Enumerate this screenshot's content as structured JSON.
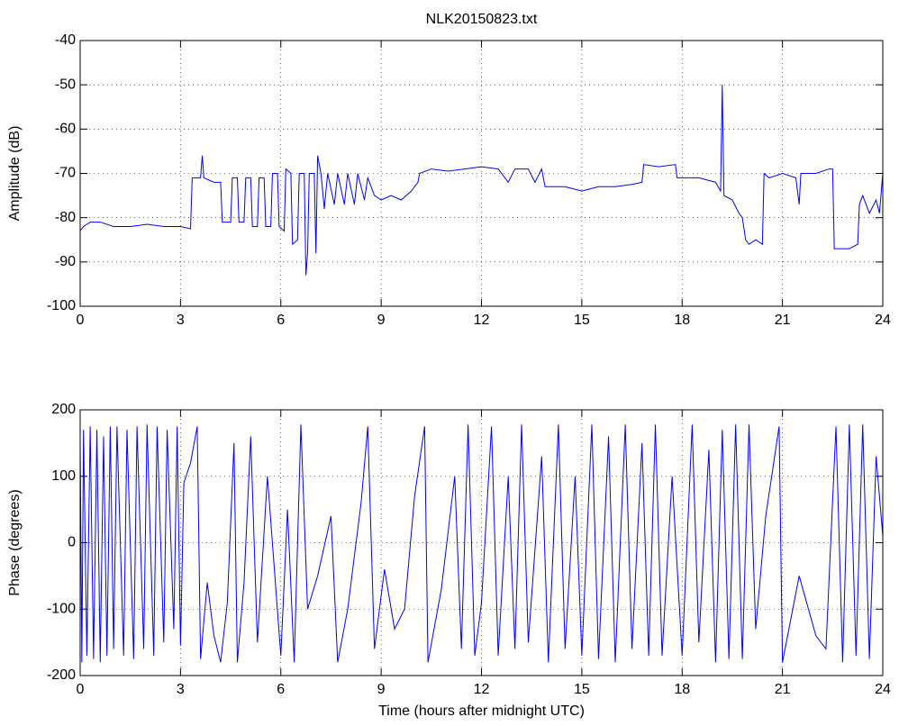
{
  "chart_data": [
    {
      "type": "line",
      "title": "NLK20150823.txt",
      "ylabel": "Amplitude (dB)",
      "grid": true,
      "xlim": [
        0,
        24
      ],
      "xticks": [
        0,
        3,
        6,
        9,
        12,
        15,
        18,
        21,
        24
      ],
      "ylim": [
        -100,
        -40
      ],
      "yticks": [
        -100,
        -90,
        -80,
        -70,
        -60,
        -50,
        -40
      ],
      "series": [
        {
          "color": "#0000ff",
          "x": [
            0,
            0.1,
            0.3,
            0.6,
            1,
            1.5,
            2,
            2.5,
            3,
            3.3,
            3.35,
            3.6,
            3.65,
            3.7,
            4,
            4.2,
            4.25,
            4.5,
            4.55,
            4.7,
            4.75,
            4.9,
            4.95,
            5.1,
            5.15,
            5.3,
            5.35,
            5.5,
            5.55,
            5.7,
            5.75,
            5.9,
            5.95,
            6.1,
            6.15,
            6.3,
            6.35,
            6.5,
            6.55,
            6.7,
            6.75,
            6.8,
            6.85,
            7,
            7.05,
            7.1,
            7.2,
            7.3,
            7.4,
            7.6,
            7.7,
            7.9,
            8,
            8.2,
            8.3,
            8.5,
            8.6,
            8.8,
            9,
            9.3,
            9.6,
            9.9,
            10.1,
            10.15,
            10.5,
            11,
            11.5,
            12,
            12.5,
            12.8,
            13,
            13.4,
            13.6,
            13.8,
            13.9,
            14.5,
            15,
            15.5,
            16,
            16.5,
            16.8,
            16.85,
            17.3,
            17.8,
            17.85,
            18.5,
            19,
            19.15,
            19.2,
            19.25,
            19.5,
            19.7,
            19.8,
            19.9,
            20,
            20.2,
            20.4,
            20.45,
            20.6,
            21,
            21.4,
            21.5,
            21.55,
            22,
            22.4,
            22.5,
            22.55,
            23,
            23.25,
            23.3,
            23.4,
            23.6,
            23.8,
            23.9,
            24
          ],
          "values": [
            -83,
            -82,
            -81,
            -81,
            -82,
            -82,
            -81.5,
            -82,
            -82,
            -82.5,
            -71,
            -71,
            -66,
            -71,
            -72,
            -72,
            -81,
            -81,
            -71,
            -71,
            -81,
            -81,
            -71,
            -71,
            -82,
            -82,
            -71,
            -71,
            -82,
            -82,
            -70,
            -70,
            -82,
            -83,
            -69,
            -70,
            -86,
            -85,
            -70,
            -70,
            -93,
            -88,
            -70,
            -70,
            -88,
            -66,
            -70,
            -78,
            -70,
            -77,
            -70,
            -77,
            -70,
            -77,
            -70,
            -76,
            -71,
            -75,
            -76,
            -75,
            -76,
            -74,
            -72,
            -70,
            -69,
            -69.5,
            -69,
            -68.5,
            -69,
            -72,
            -69,
            -69,
            -72,
            -69,
            -73,
            -73,
            -74,
            -73,
            -73,
            -72.5,
            -72,
            -68,
            -68.5,
            -68,
            -71,
            -71,
            -72,
            -74,
            -50,
            -75,
            -76,
            -79,
            -80,
            -85,
            -86,
            -85,
            -86,
            -70,
            -71,
            -70,
            -71,
            -77,
            -70,
            -70,
            -69,
            -69,
            -87,
            -87,
            -86,
            -77,
            -75,
            -79,
            -76,
            -79,
            -70
          ]
        }
      ]
    },
    {
      "type": "line",
      "ylabel": "Phase (degrees)",
      "xlabel": "Time (hours after midnight UTC)",
      "grid": true,
      "xlim": [
        0,
        24
      ],
      "xticks": [
        0,
        3,
        6,
        9,
        12,
        15,
        18,
        21,
        24
      ],
      "ylim": [
        -200,
        200
      ],
      "yticks": [
        -200,
        -100,
        0,
        100,
        200
      ],
      "series": [
        {
          "color": "#0000ff",
          "x": [
            0,
            0.05,
            0.1,
            0.2,
            0.3,
            0.4,
            0.5,
            0.6,
            0.7,
            0.8,
            0.9,
            1.0,
            1.1,
            1.3,
            1.4,
            1.6,
            1.7,
            1.9,
            2.0,
            2.2,
            2.3,
            2.5,
            2.6,
            2.8,
            2.9,
            3.0,
            3.1,
            3.3,
            3.5,
            3.6,
            3.8,
            4.0,
            4.2,
            4.4,
            4.6,
            4.7,
            4.9,
            5.1,
            5.3,
            5.6,
            6.0,
            6.2,
            6.4,
            6.6,
            6.8,
            7.1,
            7.5,
            7.7,
            8.0,
            8.4,
            8.6,
            8.8,
            9.1,
            9.4,
            9.7,
            10,
            10.3,
            10.4,
            10.8,
            11.2,
            11.4,
            11.6,
            11.8,
            12.0,
            12.3,
            12.5,
            12.8,
            13.0,
            13.2,
            13.4,
            13.8,
            14.0,
            14.3,
            14.5,
            14.8,
            15.0,
            15.3,
            15.5,
            15.8,
            16.0,
            16.3,
            16.5,
            16.8,
            17.0,
            17.2,
            17.4,
            17.7,
            18.0,
            18.3,
            18.5,
            18.8,
            19.0,
            19.2,
            19.4,
            19.6,
            19.8,
            20.0,
            20.2,
            20.5,
            20.9,
            21.0,
            21.5,
            22.0,
            22.3,
            22.6,
            22.8,
            23.0,
            23.2,
            23.4,
            23.6,
            23.8,
            24.0
          ],
          "values": [
            150,
            -180,
            170,
            -170,
            175,
            -175,
            170,
            -180,
            160,
            -170,
            175,
            -160,
            175,
            -170,
            170,
            -175,
            175,
            -160,
            178,
            -170,
            175,
            -150,
            170,
            -130,
            175,
            -155,
            90,
            120,
            175,
            -175,
            -60,
            -140,
            -180,
            -90,
            150,
            -180,
            -60,
            160,
            -150,
            100,
            -170,
            50,
            -180,
            178,
            -100,
            -50,
            40,
            -180,
            -100,
            60,
            175,
            -160,
            -40,
            -130,
            -100,
            70,
            175,
            -180,
            -70,
            100,
            -160,
            178,
            -170,
            -90,
            175,
            -170,
            100,
            -160,
            178,
            -150,
            130,
            -180,
            178,
            -160,
            100,
            -170,
            178,
            -175,
            160,
            -180,
            178,
            -160,
            150,
            -170,
            178,
            -170,
            100,
            -170,
            178,
            -150,
            140,
            -180,
            170,
            -175,
            178,
            -175,
            178,
            -130,
            40,
            175,
            -180,
            -50,
            -140,
            -160,
            175,
            -180,
            178,
            -170,
            178,
            -175,
            130,
            10
          ]
        }
      ]
    }
  ]
}
